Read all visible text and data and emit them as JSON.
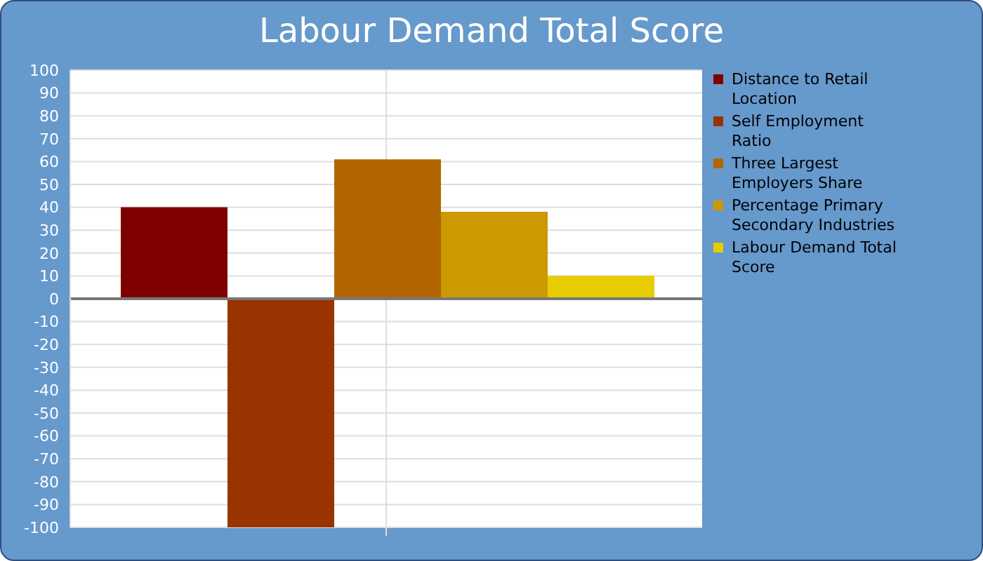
{
  "chart_data": {
    "type": "bar",
    "title": "Labour Demand Total Score",
    "categories": [
      null
    ],
    "series": [
      {
        "name": "Distance to Retail Location",
        "color": "#800000",
        "values": [
          40
        ]
      },
      {
        "name": "Self Employment Ratio",
        "color": "#993300",
        "values": [
          -100
        ]
      },
      {
        "name": "Three Largest Employers Share",
        "color": "#b36600",
        "values": [
          61
        ]
      },
      {
        "name": "Percentage Primary Secondary Industries",
        "color": "#cc9900",
        "values": [
          38
        ]
      },
      {
        "name": "Labour Demand Total Score",
        "color": "#e6cc00",
        "values": [
          10
        ]
      }
    ],
    "ylim": [
      -100,
      100
    ],
    "yticks": [
      -100,
      -90,
      -80,
      -70,
      -60,
      -50,
      -40,
      -30,
      -20,
      -10,
      0,
      10,
      20,
      30,
      40,
      50,
      60,
      70,
      80,
      90,
      100
    ],
    "grid": true,
    "legend": "right"
  }
}
